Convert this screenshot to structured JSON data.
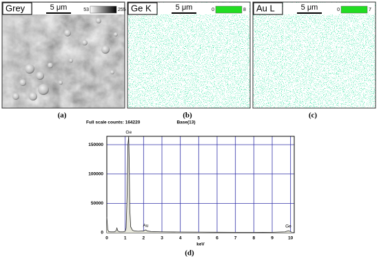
{
  "panels": [
    {
      "label": "Grey",
      "scale": "5 μm",
      "range_min": "53",
      "range_max": "255",
      "caption": "(a)"
    },
    {
      "label": "Ge K",
      "scale": "5 μm",
      "range_min": "0",
      "range_max": "8",
      "caption": "(b)"
    },
    {
      "label": "Au L",
      "scale": "5 μm",
      "range_min": "0",
      "range_max": "7",
      "caption": "(c)"
    }
  ],
  "chart_data": {
    "type": "line",
    "title": "Full scale counts: 164220",
    "subtitle": "Base(13)",
    "x_label": "keV",
    "caption": "(d)",
    "x": [
      0,
      0.05,
      0.1,
      0.2,
      0.4,
      0.5,
      0.55,
      0.6,
      0.7,
      0.9,
      1.0,
      1.05,
      1.1,
      1.15,
      1.19,
      1.22,
      1.25,
      1.3,
      1.4,
      1.5,
      1.7,
      2.0,
      2.1,
      2.12,
      2.2,
      2.4,
      3,
      4,
      5,
      6,
      7,
      8,
      9,
      9.7,
      9.88,
      10,
      10.05
    ],
    "series": [
      {
        "name": "Base(13)",
        "color": "#222222",
        "values": [
          27000,
          5000,
          2000,
          1500,
          1500,
          3000,
          8000,
          3000,
          1500,
          1500,
          2500,
          8000,
          60000,
          150000,
          164000,
          120000,
          40000,
          10000,
          4000,
          3000,
          2500,
          3000,
          4500,
          4800,
          3000,
          2000,
          1500,
          1200,
          1000,
          800,
          700,
          600,
          700,
          1500,
          3500,
          2000,
          1000
        ]
      }
    ],
    "annotations": [
      {
        "text": "Ge",
        "x": 1.19,
        "y": 164000
      },
      {
        "text": "Au",
        "x": 2.12,
        "y": 4800
      },
      {
        "text": "Ge",
        "x": 9.88,
        "y": 3500
      }
    ],
    "xlim": [
      0,
      10.2
    ],
    "ylim": [
      0,
      164220
    ],
    "xticks": [
      0,
      1,
      2,
      3,
      4,
      5,
      6,
      7,
      8,
      9,
      10
    ],
    "yticks": [
      0,
      50000,
      100000,
      150000
    ],
    "grid": true,
    "grid_color": "#3333aa"
  }
}
